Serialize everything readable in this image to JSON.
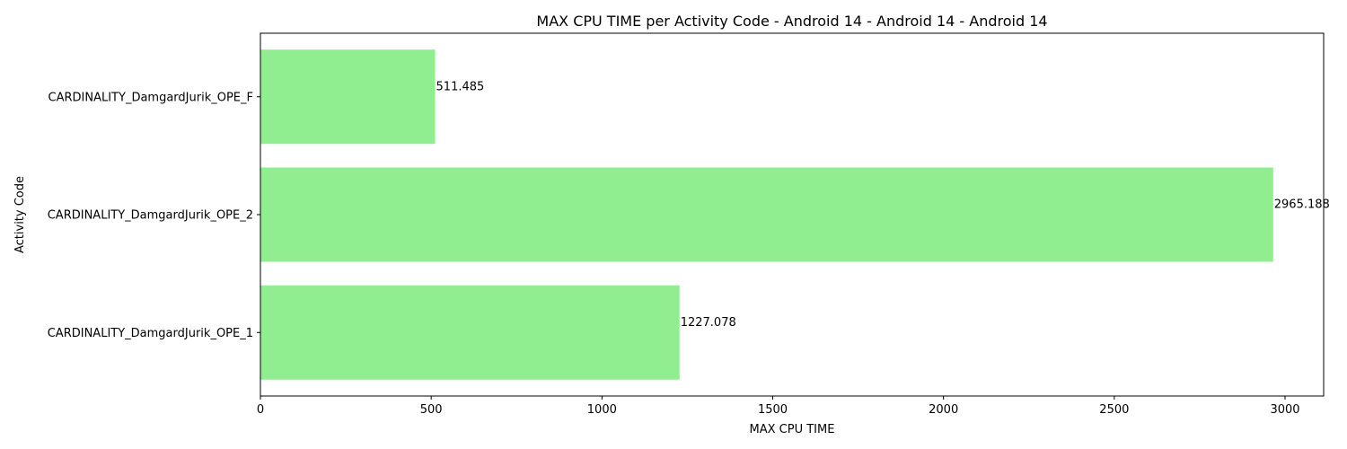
{
  "chart_data": {
    "type": "bar",
    "orientation": "horizontal",
    "title": "MAX CPU TIME per Activity Code - Android 14 - Android 14 - Android 14",
    "xlabel": "MAX CPU TIME",
    "ylabel": "Activity Code",
    "categories": [
      "CARDINALITY_DamgardJurik_OPE_F",
      "CARDINALITY_DamgardJurik_OPE_2",
      "CARDINALITY_DamgardJurik_OPE_1"
    ],
    "values": [
      511.485,
      2965.188,
      1227.078
    ],
    "value_labels": [
      "511.485",
      "2965.188",
      "1227.078"
    ],
    "xlim": [
      0,
      3113
    ],
    "xticks": [
      0,
      500,
      1000,
      1500,
      2000,
      2500,
      3000
    ],
    "xtick_labels": [
      "0",
      "500",
      "1000",
      "1500",
      "2000",
      "2500",
      "3000"
    ],
    "bar_color": "#90ee90",
    "grid": false,
    "legend": false
  }
}
